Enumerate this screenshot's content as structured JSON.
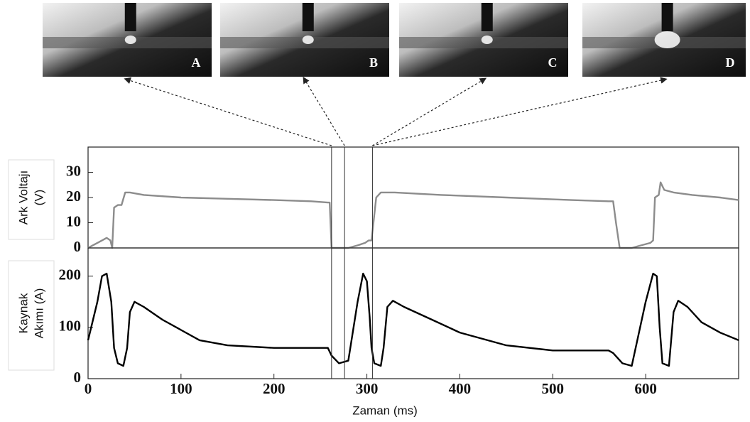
{
  "events": [
    {
      "label": "A",
      "time": 262
    },
    {
      "label": "B",
      "time": 276
    },
    {
      "label": "C",
      "time": 306
    },
    {
      "label": "D",
      "time": 306
    }
  ],
  "chart_data": [
    {
      "type": "line",
      "ylabel": [
        "Ark Voltajı",
        "(V)"
      ],
      "x": [
        0,
        5,
        10,
        15,
        20,
        24,
        26,
        28,
        32,
        36,
        40,
        45,
        60,
        100,
        150,
        200,
        240,
        258,
        260,
        262,
        270,
        280,
        290,
        298,
        302,
        305,
        310,
        315,
        330,
        380,
        450,
        520,
        560,
        565,
        568,
        572,
        585,
        595,
        605,
        608,
        610,
        614,
        616,
        620,
        630,
        650,
        680,
        700
      ],
      "series": [
        {
          "color": "#8c8c8c",
          "values": [
            0,
            1,
            2,
            3,
            4,
            3,
            0,
            16,
            17,
            17,
            22,
            22,
            21,
            20,
            19.5,
            19,
            18.5,
            18,
            18,
            0,
            0,
            0,
            1,
            2,
            3,
            3,
            20,
            22,
            22,
            21,
            20,
            19,
            18.5,
            18.5,
            10,
            0,
            0,
            1,
            2,
            3,
            20,
            21,
            26,
            23,
            22,
            21,
            20,
            19
          ]
        }
      ],
      "xlim": [
        0,
        700
      ],
      "ylim": [
        0,
        40
      ],
      "yticks": [
        0,
        10,
        20,
        30
      ]
    },
    {
      "type": "line",
      "ylabel": [
        "Kaynak",
        "Akımı (A)"
      ],
      "xlabel": "Zaman (ms)",
      "x": [
        0,
        10,
        15,
        20,
        25,
        28,
        32,
        38,
        42,
        45,
        50,
        60,
        80,
        100,
        120,
        150,
        200,
        258,
        262,
        270,
        280,
        290,
        296,
        300,
        303,
        305,
        308,
        315,
        318,
        322,
        328,
        340,
        370,
        400,
        450,
        500,
        560,
        565,
        575,
        585,
        600,
        608,
        612,
        615,
        618,
        625,
        630,
        635,
        645,
        660,
        680,
        700
      ],
      "series": [
        {
          "color": "#000000",
          "values": [
            75,
            150,
            200,
            205,
            150,
            60,
            30,
            25,
            60,
            130,
            150,
            140,
            115,
            95,
            75,
            65,
            60,
            60,
            45,
            30,
            35,
            150,
            205,
            190,
            120,
            60,
            30,
            25,
            60,
            140,
            152,
            140,
            115,
            90,
            65,
            55,
            55,
            50,
            30,
            25,
            150,
            205,
            200,
            100,
            30,
            25,
            130,
            152,
            140,
            110,
            90,
            75
          ]
        }
      ],
      "xlim": [
        0,
        700
      ],
      "ylim": [
        0,
        255
      ],
      "yticks": [
        0,
        100,
        200
      ],
      "xticks": [
        0,
        100,
        200,
        300,
        400,
        500,
        600
      ]
    }
  ]
}
